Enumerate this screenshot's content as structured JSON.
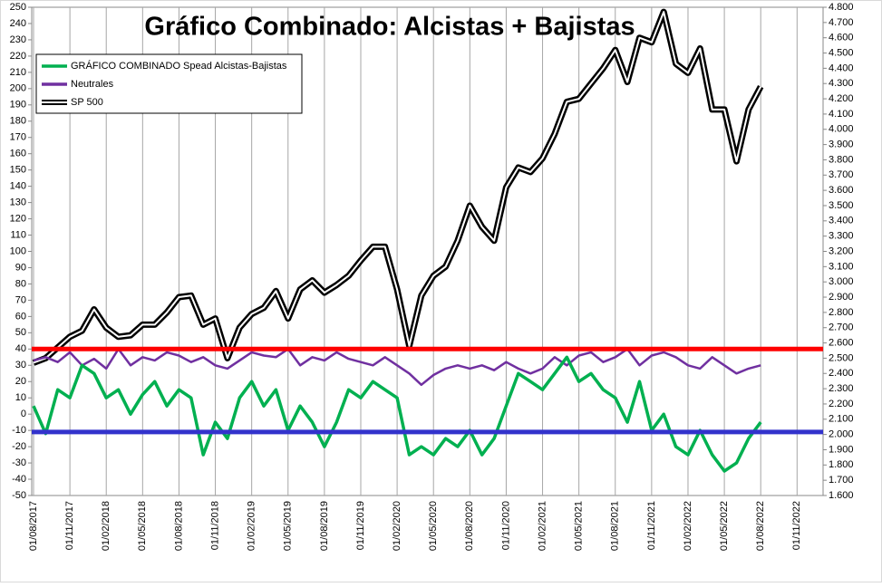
{
  "chart_data": {
    "type": "line",
    "title": "Gráfico Combinado: Alcistas + Bajistas",
    "x": [
      "01/08/2017",
      "01/09/2017",
      "01/10/2017",
      "01/11/2017",
      "01/12/2017",
      "01/01/2018",
      "01/02/2018",
      "01/03/2018",
      "01/04/2018",
      "01/05/2018",
      "01/06/2018",
      "01/07/2018",
      "01/08/2018",
      "01/09/2018",
      "01/10/2018",
      "01/11/2018",
      "01/12/2018",
      "01/01/2019",
      "01/02/2019",
      "01/03/2019",
      "01/04/2019",
      "01/05/2019",
      "01/06/2019",
      "01/07/2019",
      "01/08/2019",
      "01/09/2019",
      "01/10/2019",
      "01/11/2019",
      "01/12/2019",
      "01/01/2020",
      "01/02/2020",
      "01/03/2020",
      "01/04/2020",
      "01/05/2020",
      "01/06/2020",
      "01/07/2020",
      "01/08/2020",
      "01/09/2020",
      "01/10/2020",
      "01/11/2020",
      "01/12/2020",
      "01/01/2021",
      "01/02/2021",
      "01/03/2021",
      "01/04/2021",
      "01/05/2021",
      "01/06/2021",
      "01/07/2021",
      "01/08/2021",
      "01/09/2021",
      "01/10/2021",
      "01/11/2021",
      "01/12/2021",
      "01/01/2022",
      "01/02/2022",
      "01/03/2022",
      "01/04/2022",
      "01/05/2022",
      "01/06/2022",
      "01/07/2022",
      "01/08/2022"
    ],
    "series": [
      {
        "name": "GRÁFICO COMBINADO Spead Alcistas-Bajistas",
        "color": "#00b050",
        "axis": "y",
        "values": [
          5,
          -12,
          15,
          10,
          30,
          25,
          10,
          15,
          0,
          12,
          20,
          5,
          15,
          10,
          -25,
          -5,
          -15,
          10,
          20,
          5,
          15,
          -10,
          5,
          -5,
          -20,
          -5,
          15,
          10,
          20,
          15,
          10,
          -25,
          -20,
          -25,
          -15,
          -20,
          -10,
          -25,
          -15,
          5,
          25,
          20,
          15,
          25,
          35,
          20,
          25,
          15,
          10,
          -5,
          20,
          -10,
          0,
          -20,
          -25,
          -10,
          -25,
          -35,
          -30,
          -15,
          -5
        ]
      },
      {
        "name": "Neutrales",
        "color": "#7030a0",
        "axis": "y",
        "values": [
          33,
          35,
          32,
          38,
          30,
          34,
          28,
          40,
          30,
          35,
          33,
          38,
          36,
          32,
          35,
          30,
          28,
          33,
          38,
          36,
          35,
          40,
          30,
          35,
          33,
          38,
          34,
          32,
          30,
          35,
          30,
          25,
          18,
          24,
          28,
          30,
          28,
          30,
          27,
          32,
          28,
          25,
          28,
          35,
          30,
          36,
          38,
          32,
          35,
          40,
          30,
          36,
          38,
          35,
          30,
          28,
          35,
          30,
          25,
          28,
          30
        ]
      },
      {
        "name": "SP 500",
        "color": "#000000",
        "axis": "y2",
        "values": [
          2470,
          2500,
          2570,
          2640,
          2680,
          2820,
          2700,
          2640,
          2650,
          2720,
          2720,
          2800,
          2900,
          2910,
          2720,
          2760,
          2500,
          2700,
          2790,
          2830,
          2940,
          2760,
          2950,
          3010,
          2930,
          2980,
          3040,
          3140,
          3230,
          3230,
          2950,
          2580,
          2910,
          3040,
          3100,
          3270,
          3500,
          3360,
          3270,
          3620,
          3750,
          3720,
          3810,
          3970,
          4180,
          4200,
          4300,
          4400,
          4520,
          4310,
          4600,
          4570,
          4770,
          4430,
          4370,
          4530,
          4130,
          4130,
          3790,
          4130,
          4280
        ]
      }
    ],
    "ylim": [
      -50,
      250
    ],
    "yticks": [
      -50,
      -40,
      -30,
      -20,
      -10,
      0,
      10,
      20,
      30,
      40,
      50,
      60,
      70,
      80,
      90,
      100,
      110,
      120,
      130,
      140,
      150,
      160,
      170,
      180,
      190,
      200,
      210,
      220,
      230,
      240,
      250
    ],
    "y2lim": [
      1600,
      4800
    ],
    "y2ticks": [
      {
        "value": 1600,
        "label": "1.600"
      },
      {
        "value": 1700,
        "label": "1.700"
      },
      {
        "value": 1800,
        "label": "1.800"
      },
      {
        "value": 1900,
        "label": "1.900"
      },
      {
        "value": 2000,
        "label": "2.000"
      },
      {
        "value": 2100,
        "label": "2.100"
      },
      {
        "value": 2200,
        "label": "2.200"
      },
      {
        "value": 2300,
        "label": "2.300"
      },
      {
        "value": 2400,
        "label": "2.400"
      },
      {
        "value": 2500,
        "label": "2.500"
      },
      {
        "value": 2600,
        "label": "2.600"
      },
      {
        "value": 2700,
        "label": "2.700"
      },
      {
        "value": 2800,
        "label": "2.800"
      },
      {
        "value": 2900,
        "label": "2.900"
      },
      {
        "value": 3000,
        "label": "3.000"
      },
      {
        "value": 3100,
        "label": "3.100"
      },
      {
        "value": 3200,
        "label": "3.200"
      },
      {
        "value": 3300,
        "label": "3.300"
      },
      {
        "value": 3400,
        "label": "3.400"
      },
      {
        "value": 3500,
        "label": "3.500"
      },
      {
        "value": 3600,
        "label": "3.600"
      },
      {
        "value": 3700,
        "label": "3.700"
      },
      {
        "value": 3800,
        "label": "3.800"
      },
      {
        "value": 3900,
        "label": "3.900"
      },
      {
        "value": 4000,
        "label": "4.000"
      },
      {
        "value": 4100,
        "label": "4.100"
      },
      {
        "value": 4200,
        "label": "4.200"
      },
      {
        "value": 4300,
        "label": "4.300"
      },
      {
        "value": 4400,
        "label": "4.400"
      },
      {
        "value": 4500,
        "label": "4.500"
      },
      {
        "value": 4600,
        "label": "4.600"
      },
      {
        "value": 4700,
        "label": "4.700"
      },
      {
        "value": 4800,
        "label": "4.800"
      }
    ],
    "xticks": [
      "01/08/2017",
      "01/11/2017",
      "01/02/2018",
      "01/05/2018",
      "01/08/2018",
      "01/11/2018",
      "01/02/2019",
      "01/05/2019",
      "01/08/2019",
      "01/11/2019",
      "01/02/2020",
      "01/05/2020",
      "01/08/2020",
      "01/11/2020",
      "01/02/2021",
      "01/05/2021",
      "01/08/2021",
      "01/11/2021",
      "01/02/2022",
      "01/05/2022",
      "01/08/2022",
      "01/11/2022"
    ],
    "hlines": [
      {
        "value": 40,
        "color": "#ff0000"
      },
      {
        "value": -11,
        "color": "#3333cc"
      }
    ],
    "grid": "x"
  }
}
